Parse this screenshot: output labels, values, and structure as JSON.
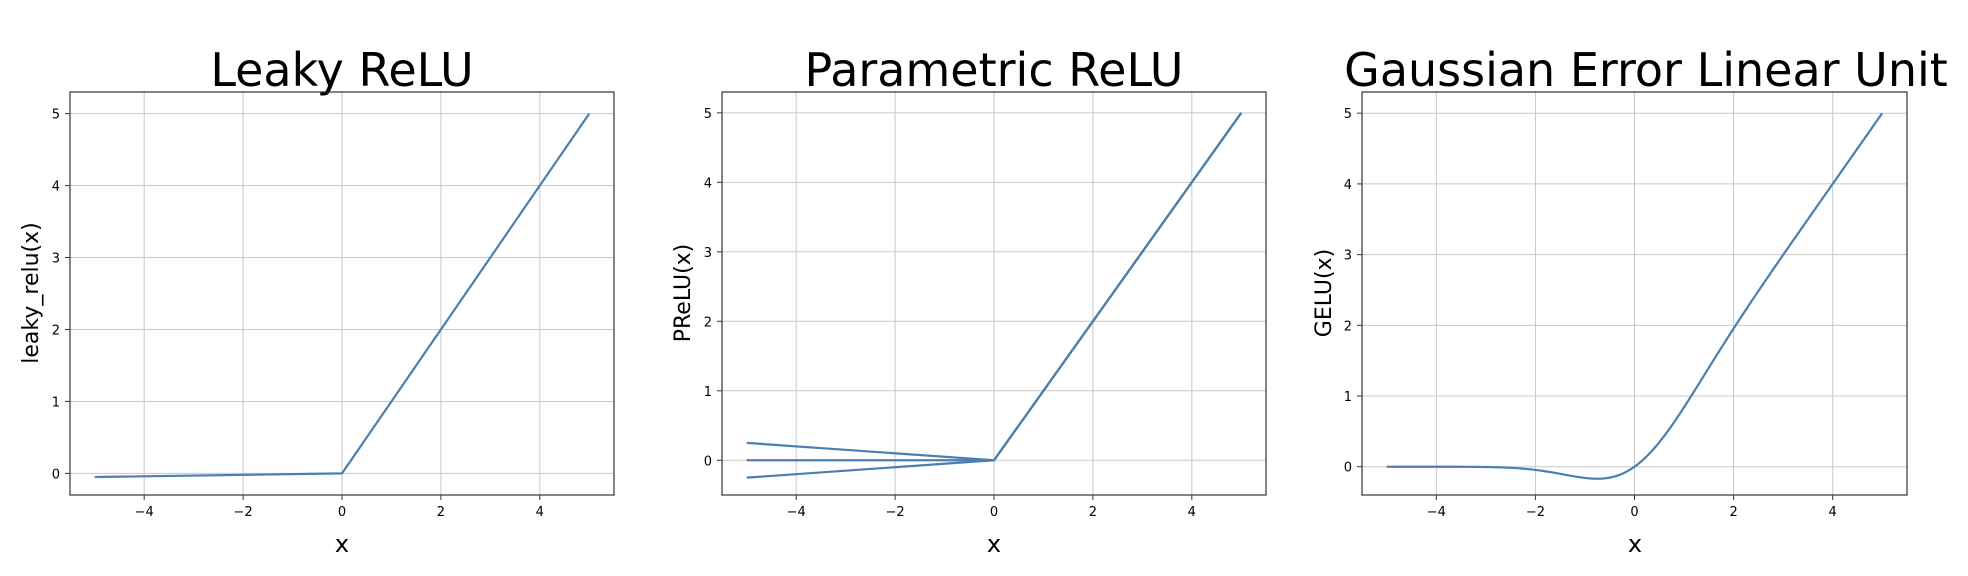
{
  "chart_data": [
    {
      "type": "line",
      "title": "Leaky ReLU",
      "xlabel": "x",
      "ylabel": "leaky_relu(x)",
      "xlim": [
        -5.5,
        5.5
      ],
      "ylim": [
        -0.3,
        5.3
      ],
      "xticks": [
        -4,
        -2,
        0,
        2,
        4
      ],
      "yticks": [
        0,
        1,
        2,
        3,
        4,
        5
      ],
      "xtick_labels": [
        "−4",
        "−2",
        "0",
        "2",
        "4"
      ],
      "ytick_labels": [
        "0",
        "1",
        "2",
        "3",
        "4",
        "5"
      ],
      "grid": true,
      "series": [
        {
          "x": [
            -5,
            0,
            5
          ],
          "y": [
            -0.05,
            0,
            5
          ]
        }
      ]
    },
    {
      "type": "line",
      "title": "Parametric ReLU",
      "xlabel": "x",
      "ylabel": "PReLU(x)",
      "xlim": [
        -5.5,
        5.5
      ],
      "ylim": [
        -0.5,
        5.3
      ],
      "xticks": [
        -4,
        -2,
        0,
        2,
        4
      ],
      "yticks": [
        0,
        1,
        2,
        3,
        4,
        5
      ],
      "xtick_labels": [
        "−4",
        "−2",
        "0",
        "2",
        "4"
      ],
      "ytick_labels": [
        "0",
        "1",
        "2",
        "3",
        "4",
        "5"
      ],
      "grid": true,
      "series": [
        {
          "x": [
            -5,
            0,
            5
          ],
          "y": [
            0.25,
            0,
            5
          ]
        },
        {
          "x": [
            -5,
            0,
            5
          ],
          "y": [
            0,
            0,
            5
          ]
        },
        {
          "x": [
            -5,
            0,
            5
          ],
          "y": [
            -0.25,
            0,
            5
          ]
        }
      ]
    },
    {
      "type": "line",
      "title": "Gaussian Error Linear Unit",
      "xlabel": "x",
      "ylabel": "GELU(x)",
      "xlim": [
        -5.5,
        5.5
      ],
      "ylim": [
        -0.4,
        5.3
      ],
      "xticks": [
        -4,
        -2,
        0,
        2,
        4
      ],
      "yticks": [
        0,
        1,
        2,
        3,
        4,
        5
      ],
      "xtick_labels": [
        "−4",
        "−2",
        "0",
        "2",
        "4"
      ],
      "ytick_labels": [
        "0",
        "1",
        "2",
        "3",
        "4",
        "5"
      ],
      "grid": true,
      "series": [
        {
          "function": "gelu",
          "x_range": [
            -5,
            5
          ]
        }
      ]
    }
  ],
  "colors": {
    "line": "#4c7fae",
    "grid": "#c8c8c8",
    "axes": "#333333"
  }
}
